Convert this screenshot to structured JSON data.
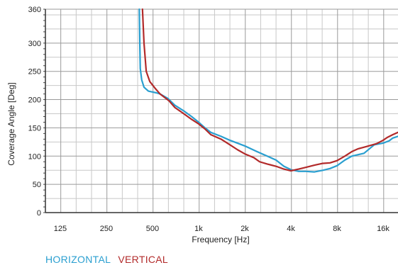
{
  "chart_data": {
    "type": "line",
    "title": "",
    "xlabel": "Frequency [Hz]",
    "ylabel": "Coverage Angle [Deg]",
    "x_scale": "log2",
    "xlim": [
      100,
      20000
    ],
    "ylim": [
      0,
      360
    ],
    "x_ticks": [
      {
        "value": 125,
        "label": "125"
      },
      {
        "value": 250,
        "label": "250"
      },
      {
        "value": 500,
        "label": "500"
      },
      {
        "value": 1000,
        "label": "1k"
      },
      {
        "value": 2000,
        "label": "2k"
      },
      {
        "value": 4000,
        "label": "4k"
      },
      {
        "value": 8000,
        "label": "8k"
      },
      {
        "value": 16000,
        "label": "16k"
      }
    ],
    "y_ticks": [
      0,
      50,
      100,
      150,
      200,
      250,
      300,
      360
    ],
    "grid": true,
    "legend_position": "bottom-left",
    "series": [
      {
        "name": "HORIZONTAL",
        "color": "#2a9fd0",
        "points": [
          [
            410,
            360
          ],
          [
            413,
            300
          ],
          [
            416,
            255
          ],
          [
            425,
            235
          ],
          [
            440,
            222
          ],
          [
            470,
            215
          ],
          [
            530,
            212
          ],
          [
            560,
            210
          ],
          [
            630,
            202
          ],
          [
            700,
            190
          ],
          [
            800,
            180
          ],
          [
            900,
            170
          ],
          [
            1000,
            160
          ],
          [
            1100,
            150
          ],
          [
            1200,
            142
          ],
          [
            1400,
            135
          ],
          [
            1600,
            128
          ],
          [
            2000,
            118
          ],
          [
            2400,
            108
          ],
          [
            2800,
            100
          ],
          [
            3200,
            93
          ],
          [
            3600,
            82
          ],
          [
            4000,
            76
          ],
          [
            4500,
            73
          ],
          [
            5000,
            73
          ],
          [
            5700,
            72
          ],
          [
            6500,
            75
          ],
          [
            7200,
            78
          ],
          [
            8000,
            83
          ],
          [
            9000,
            93
          ],
          [
            10000,
            100
          ],
          [
            12000,
            105
          ],
          [
            14000,
            120
          ],
          [
            16000,
            123
          ],
          [
            17500,
            127
          ],
          [
            18500,
            132
          ],
          [
            20000,
            135
          ]
        ]
      },
      {
        "name": "VERTICAL",
        "color": "#b22a2a",
        "points": [
          [
            430,
            360
          ],
          [
            440,
            300
          ],
          [
            455,
            250
          ],
          [
            480,
            232
          ],
          [
            520,
            220
          ],
          [
            560,
            210
          ],
          [
            640,
            198
          ],
          [
            700,
            186
          ],
          [
            800,
            175
          ],
          [
            900,
            165
          ],
          [
            1000,
            157
          ],
          [
            1100,
            148
          ],
          [
            1200,
            138
          ],
          [
            1400,
            130
          ],
          [
            1600,
            120
          ],
          [
            1800,
            111
          ],
          [
            2000,
            104
          ],
          [
            2300,
            97
          ],
          [
            2500,
            90
          ],
          [
            2800,
            86
          ],
          [
            3200,
            82
          ],
          [
            3600,
            77
          ],
          [
            4000,
            74
          ],
          [
            4500,
            77
          ],
          [
            5000,
            80
          ],
          [
            5700,
            84
          ],
          [
            6400,
            87
          ],
          [
            7200,
            88
          ],
          [
            8000,
            92
          ],
          [
            9000,
            100
          ],
          [
            10000,
            108
          ],
          [
            11000,
            113
          ],
          [
            12500,
            117
          ],
          [
            14500,
            122
          ],
          [
            16000,
            128
          ],
          [
            17000,
            133
          ],
          [
            18500,
            138
          ],
          [
            20000,
            142
          ]
        ]
      }
    ]
  }
}
